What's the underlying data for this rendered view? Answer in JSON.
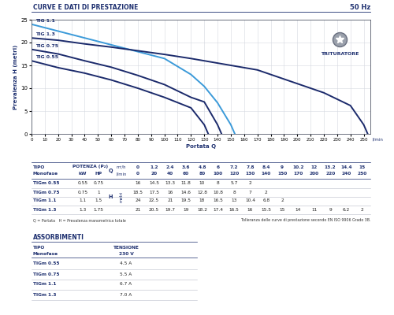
{
  "header": {
    "title": "CURVE E DATI DI PRESTAZIONE",
    "frequency": "50 Hz"
  },
  "chart_data": {
    "type": "line",
    "xlabel": "Portata Q",
    "x_unit_label": "l/min",
    "ylabel": "Prevalenza H (metri)",
    "xlim": [
      0,
      255
    ],
    "xticks": [
      0,
      10,
      20,
      30,
      40,
      50,
      60,
      70,
      80,
      90,
      100,
      110,
      120,
      130,
      140,
      150,
      160,
      170,
      180,
      190,
      200,
      210,
      220,
      230,
      240,
      250
    ],
    "ylim": [
      0,
      25
    ],
    "yticks": [
      0,
      5,
      10,
      15,
      20,
      25
    ],
    "grid": true,
    "badge": "TRITURATORE",
    "series": [
      {
        "name": "TIG 1.1",
        "color": "#3b9ad9",
        "x": [
          0,
          20,
          40,
          60,
          80,
          100,
          120,
          130,
          140,
          150,
          153
        ],
        "values": [
          24,
          22.5,
          21,
          19.5,
          18,
          16.5,
          13,
          10.4,
          6.8,
          2,
          0
        ]
      },
      {
        "name": "TIG 1.3",
        "color": "#1b2a6b",
        "x": [
          0,
          20,
          40,
          60,
          80,
          100,
          120,
          130,
          140,
          150,
          170,
          200,
          220,
          240,
          250,
          253
        ],
        "values": [
          21,
          20.5,
          19.7,
          19,
          18.2,
          17.4,
          16.5,
          16,
          15.5,
          15,
          14,
          11,
          9,
          6.2,
          2,
          0
        ]
      },
      {
        "name": "TIG 0.75",
        "color": "#1b2a6b",
        "x": [
          0,
          20,
          40,
          60,
          80,
          100,
          120,
          130,
          140,
          143
        ],
        "values": [
          18.5,
          17.5,
          16,
          14.6,
          12.8,
          10.8,
          8,
          7,
          2,
          0
        ]
      },
      {
        "name": "TIG 0.55",
        "color": "#1b2a6b",
        "x": [
          0,
          20,
          40,
          60,
          80,
          100,
          120,
          130,
          133
        ],
        "values": [
          16,
          14.5,
          13.3,
          11.8,
          10,
          8,
          5.7,
          2,
          0
        ]
      }
    ]
  },
  "performance_table": {
    "type_header": [
      "TIPO",
      "Monofase"
    ],
    "power_header": "POTENZA (P₂)",
    "power_units": [
      "kW",
      "HP"
    ],
    "q_label": "Q",
    "q_units": [
      "m³/h",
      "l/min"
    ],
    "q_m3h": [
      0,
      1.2,
      2.4,
      3.6,
      4.8,
      6,
      7.2,
      7.8,
      8.4,
      9,
      10.2,
      12,
      13.2,
      14.4,
      15
    ],
    "q_lmin": [
      0,
      20,
      40,
      60,
      80,
      100,
      120,
      130,
      140,
      150,
      170,
      200,
      220,
      240,
      250
    ],
    "h_label": "H",
    "h_unit": "metri",
    "rows": [
      {
        "name": "TIGm 0.55",
        "kw": 0.55,
        "hp": 0.75,
        "h": [
          16,
          14.5,
          13.3,
          11.8,
          10,
          8,
          5.7,
          2
        ]
      },
      {
        "name": "TIGm 0.75",
        "kw": 0.75,
        "hp": 1,
        "h": [
          18.5,
          17.5,
          16,
          14.6,
          12.8,
          10.8,
          8,
          7,
          2
        ]
      },
      {
        "name": "TIGm 1.1",
        "kw": 1.1,
        "hp": 1.5,
        "h": [
          24,
          22.5,
          21,
          19.5,
          18,
          16.5,
          13,
          10.4,
          6.8,
          2
        ]
      },
      {
        "name": "TIGm 1.3",
        "kw": 1.3,
        "hp": 1.75,
        "h": [
          21,
          20.5,
          19.7,
          19,
          18.2,
          17.4,
          16.5,
          16,
          15.5,
          15,
          14,
          11,
          9,
          6.2,
          2
        ]
      }
    ],
    "note_left": "Q = Portata   H = Prevalenza manometrica totale",
    "note_right": "Tolleranza delle curve di prestazione secondo EN ISO 9906 Grado 3B."
  },
  "absorption_table": {
    "title": "ASSORBIMENTI",
    "type_header": [
      "TIPO",
      "Monofase"
    ],
    "voltage_header": [
      "TENSIONE",
      "230 V"
    ],
    "rows": [
      {
        "name": "TIGm 0.55",
        "current": "4.5 A"
      },
      {
        "name": "TIGm 0.75",
        "current": "5.5 A"
      },
      {
        "name": "TIGm 1.1",
        "current": "6.7 A"
      },
      {
        "name": "TIGm 1.3",
        "current": "7.0 A"
      }
    ]
  }
}
